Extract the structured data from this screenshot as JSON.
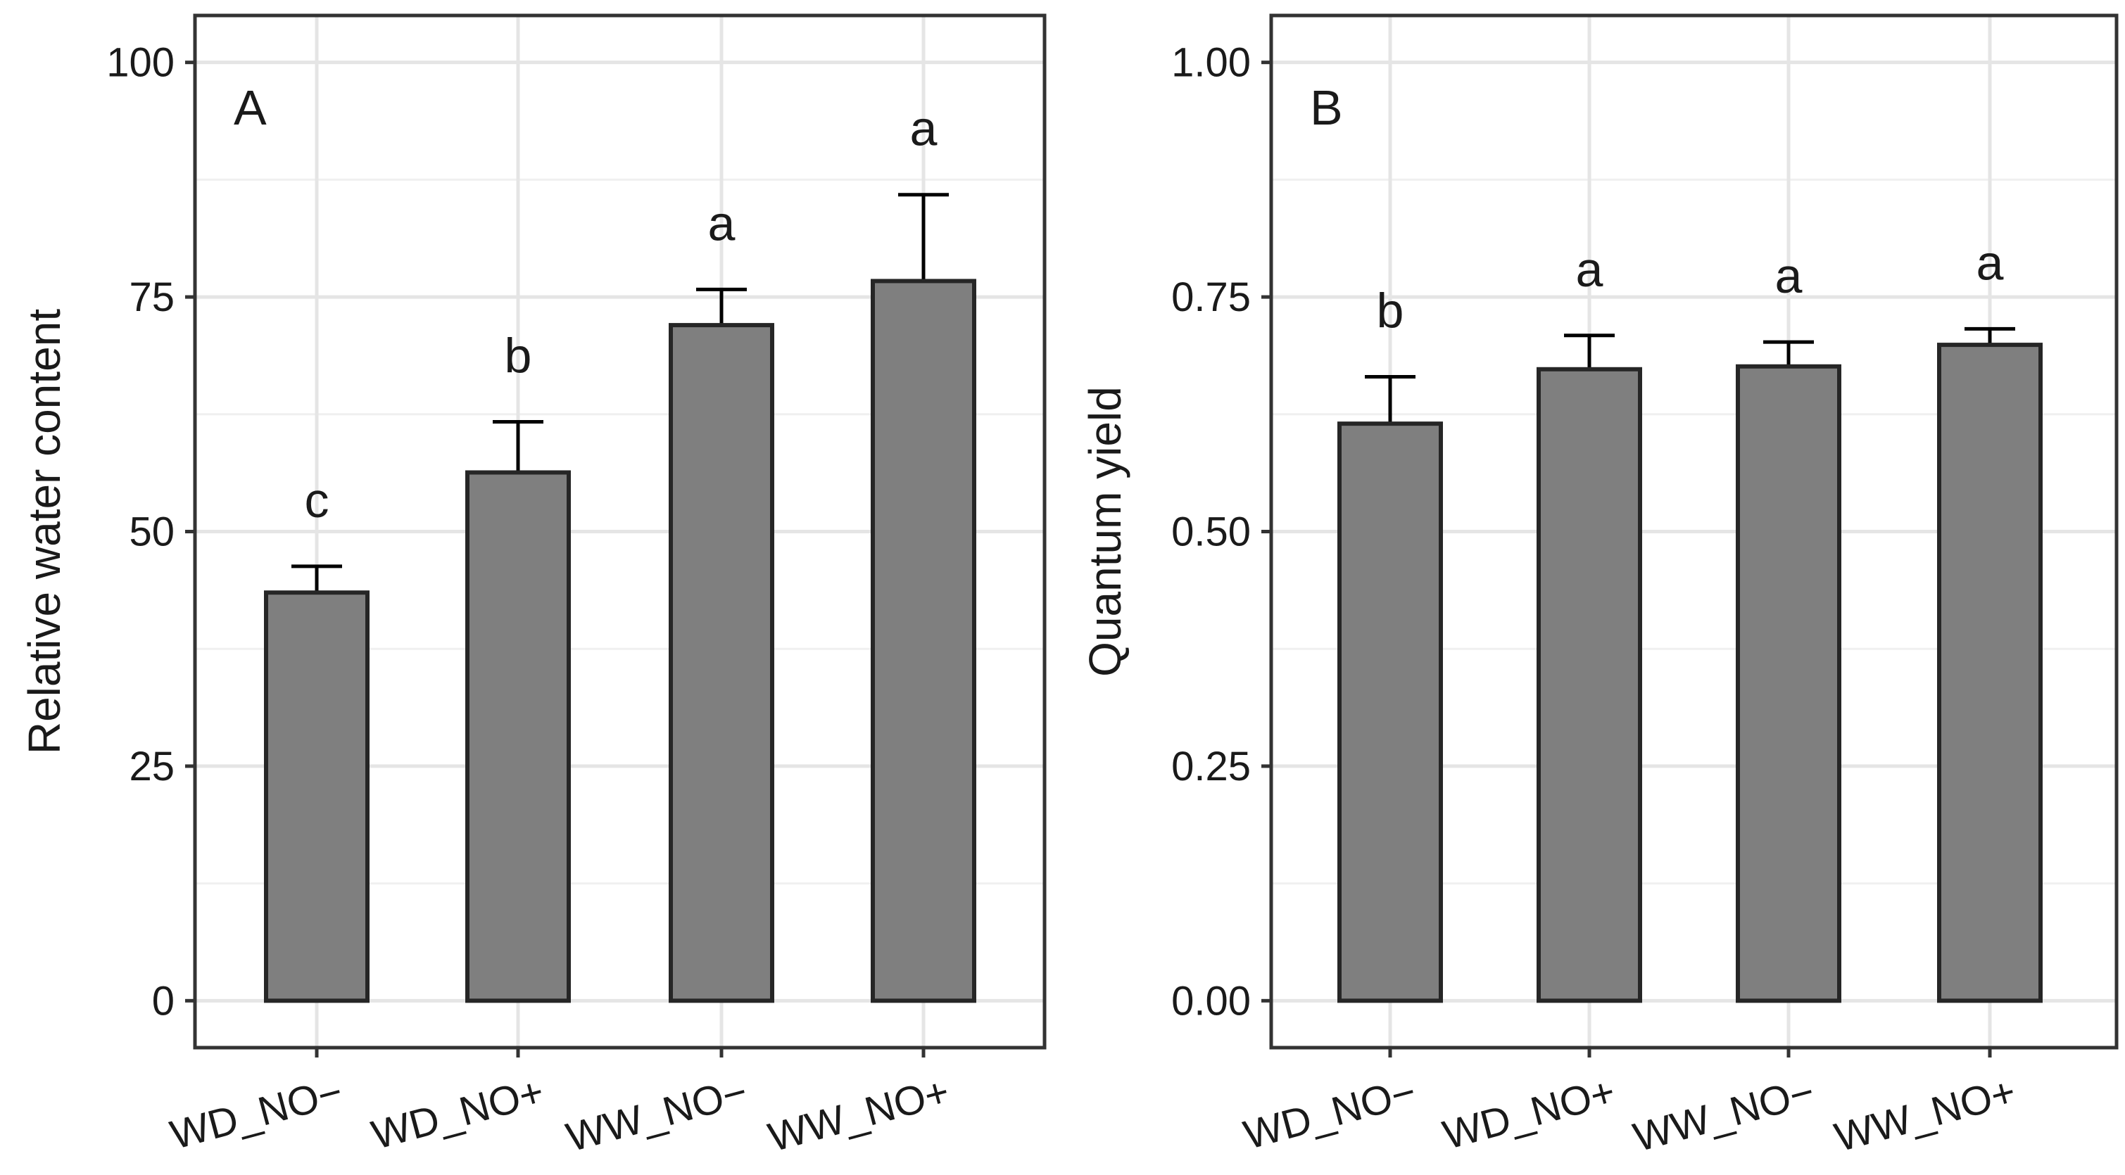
{
  "figure": {
    "chart_data": [
      {
        "type": "bar",
        "panel_label": "A",
        "title": "",
        "xlabel": "",
        "ylabel": "Relative water content",
        "categories": [
          "WD_NO−",
          "WD_NO+",
          "WW_NO−",
          "WW_NO+"
        ],
        "values": [
          43.5,
          56.3,
          72.0,
          76.7
        ],
        "errors": [
          2.8,
          5.4,
          3.8,
          9.2
        ],
        "significance": [
          "c",
          "b",
          "a",
          "a"
        ],
        "ylim": [
          -5,
          105
        ],
        "yticks": [
          0,
          25,
          50,
          75,
          100
        ],
        "ytick_labels": [
          "0",
          "25",
          "50",
          "75",
          "100"
        ],
        "bar_color": "#7f7f7f",
        "grid": true
      },
      {
        "type": "bar",
        "panel_label": "B",
        "title": "",
        "xlabel": "",
        "ylabel": "Quantum yield",
        "categories": [
          "WD_NO−",
          "WD_NO+",
          "WW_NO−",
          "WW_NO+"
        ],
        "values": [
          0.615,
          0.673,
          0.676,
          0.699
        ],
        "errors": [
          0.05,
          0.036,
          0.026,
          0.017
        ],
        "significance": [
          "b",
          "a",
          "a",
          "a"
        ],
        "ylim": [
          -0.05,
          1.05
        ],
        "yticks": [
          0,
          0.25,
          0.5,
          0.75,
          1.0
        ],
        "ytick_labels": [
          "0.00",
          "0.25",
          "0.50",
          "0.75",
          "1.00"
        ],
        "bar_color": "#7f7f7f",
        "grid": true
      }
    ]
  }
}
